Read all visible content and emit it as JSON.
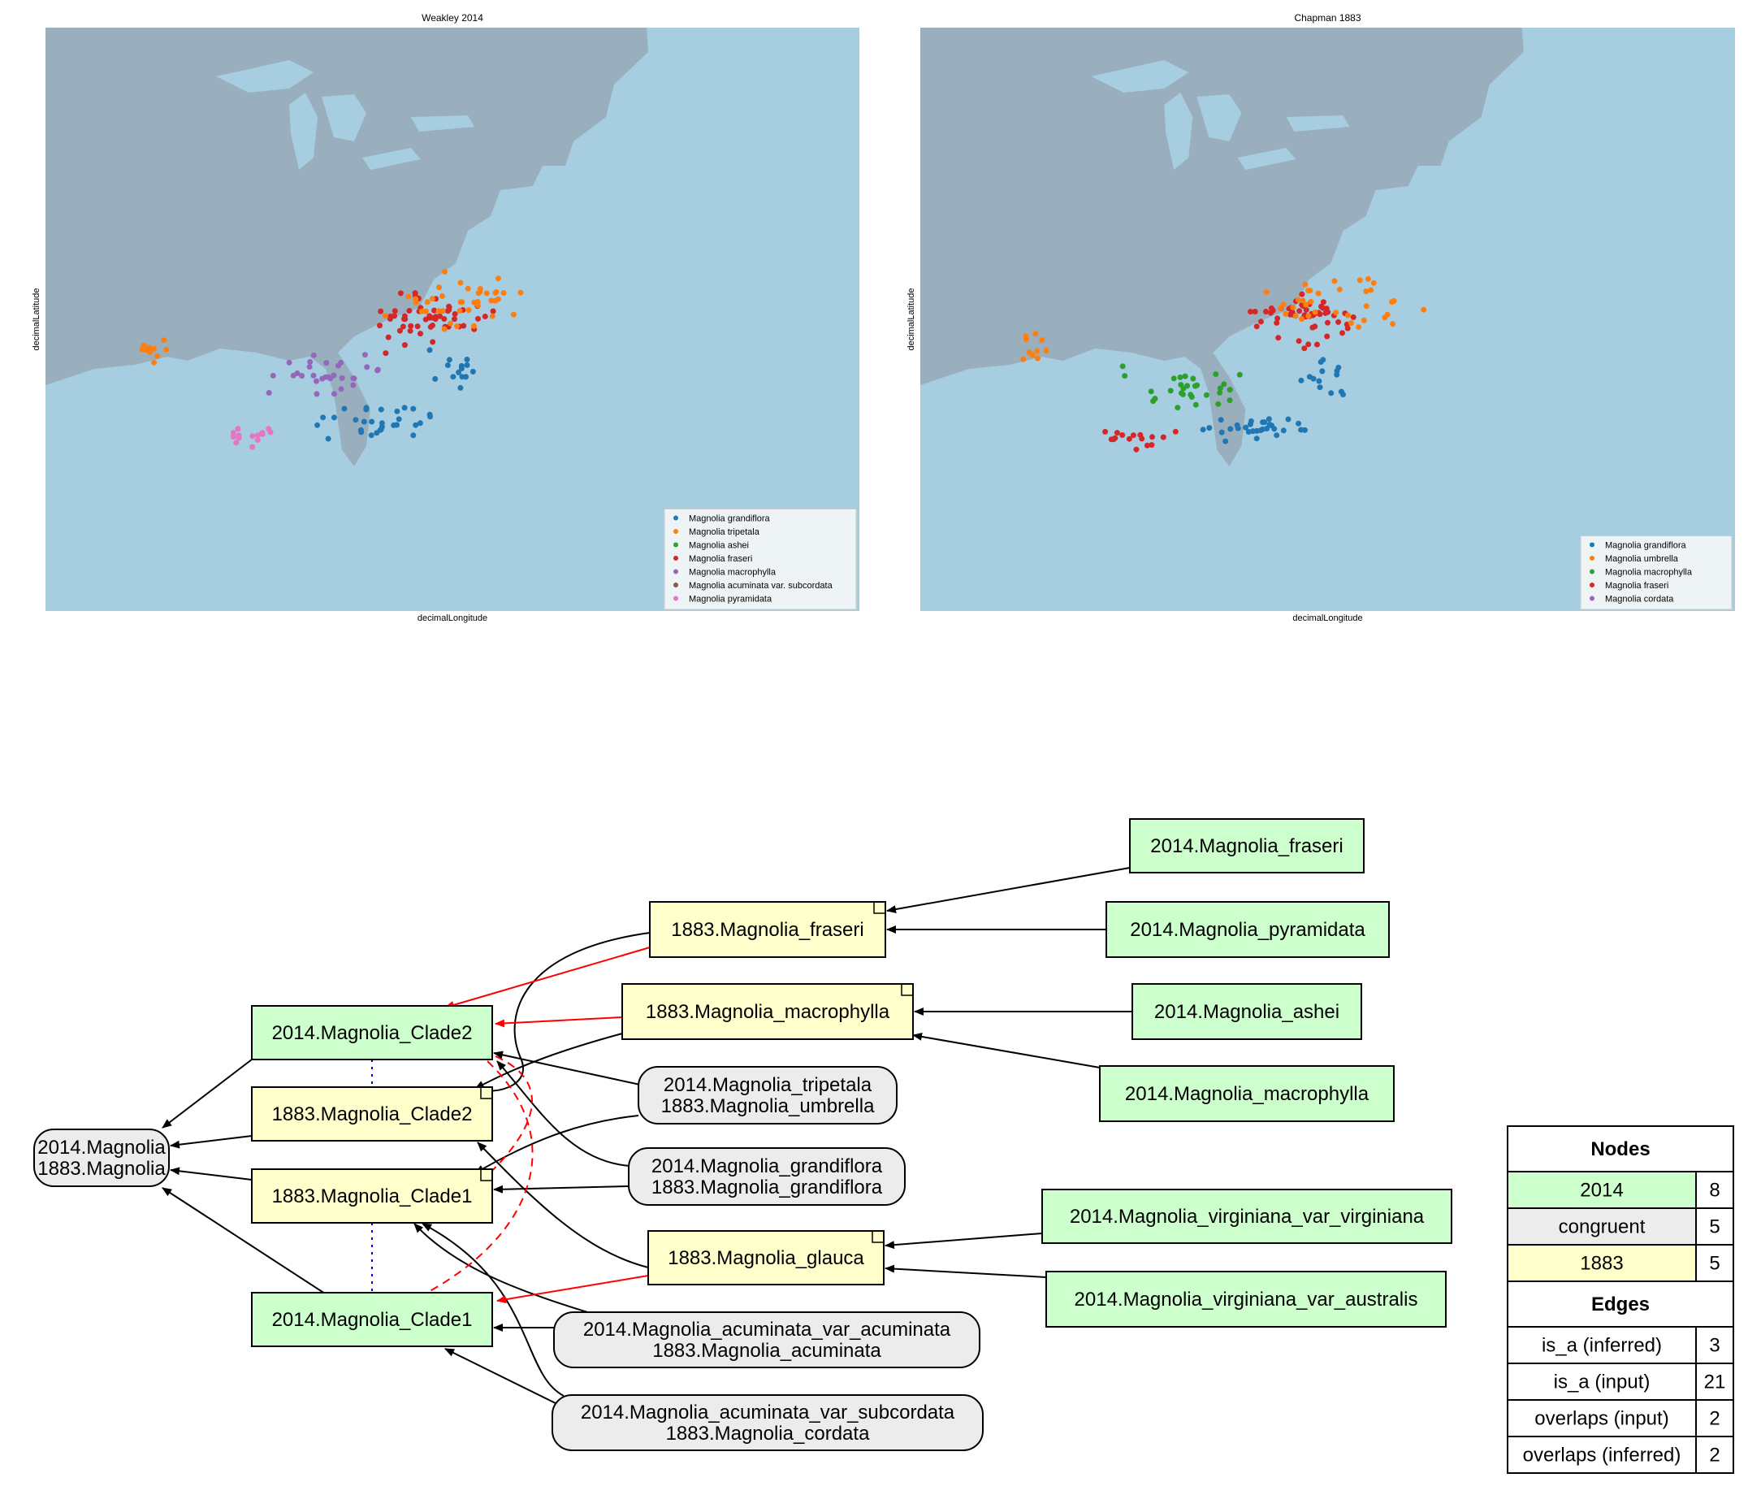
{
  "maps": [
    {
      "title": "Weakley 2014",
      "xlabel": "decimalLongitude",
      "ylabel": "decimalLatitude",
      "legend": [
        {
          "name": "Magnolia grandiflora",
          "color": "#1f77b4"
        },
        {
          "name": "Magnolia tripetala",
          "color": "#ff7f0e"
        },
        {
          "name": "Magnolia ashei",
          "color": "#2ca02c"
        },
        {
          "name": "Magnolia fraseri",
          "color": "#d62728"
        },
        {
          "name": "Magnolia macrophylla",
          "color": "#9467bd"
        },
        {
          "name": "Magnolia acuminata var. subcordata",
          "color": "#8c564b"
        },
        {
          "name": "Magnolia pyramidata",
          "color": "#e377c2"
        }
      ]
    },
    {
      "title": "Chapman 1883",
      "xlabel": "decimalLongitude",
      "ylabel": "decimalLatitude",
      "legend": [
        {
          "name": "Magnolia grandiflora",
          "color": "#1f77b4"
        },
        {
          "name": "Magnolia umbrella",
          "color": "#ff7f0e"
        },
        {
          "name": "Magnolia macrophylla",
          "color": "#2ca02c"
        },
        {
          "name": "Magnolia fraseri",
          "color": "#d62728"
        },
        {
          "name": "Magnolia cordata",
          "color": "#9467bd"
        }
      ]
    }
  ],
  "colors": {
    "land": "#99afbe",
    "water": "#a6cde0",
    "node_2014": "#ccffcc",
    "node_congruent": "#ececec",
    "node_1883": "#ffffcc",
    "edge_inferred": "#ff0000",
    "edge_input": "#000000",
    "overlaps_input": "#0000ff",
    "overlaps_inferred": "#ff0000"
  },
  "graph": {
    "nodes": {
      "congruent_root": [
        "2014.Magnolia",
        "1883.Magnolia"
      ],
      "clade2_2014": "2014.Magnolia_Clade2",
      "clade2_1883": "1883.Magnolia_Clade2",
      "clade1_1883": "1883.Magnolia_Clade1",
      "clade1_2014": "2014.Magnolia_Clade1",
      "fraseri_1883": "1883.Magnolia_fraseri",
      "macrophylla_1883": "1883.Magnolia_macrophylla",
      "glauca_1883": "1883.Magnolia_glauca",
      "tripetala_congruent": [
        "2014.Magnolia_tripetala",
        "1883.Magnolia_umbrella"
      ],
      "grandiflora_congruent": [
        "2014.Magnolia_grandiflora",
        "1883.Magnolia_grandiflora"
      ],
      "acuminata_congruent": [
        "2014.Magnolia_acuminata_var_acuminata",
        "1883.Magnolia_acuminata"
      ],
      "subcordata_congruent": [
        "2014.Magnolia_acuminata_var_subcordata",
        "1883.Magnolia_cordata"
      ],
      "fraseri_2014": "2014.Magnolia_fraseri",
      "pyramidata_2014": "2014.Magnolia_pyramidata",
      "ashei_2014": "2014.Magnolia_ashei",
      "macrophylla_2014": "2014.Magnolia_macrophylla",
      "virginiana_2014": "2014.Magnolia_virginiana_var_virginiana",
      "australis_2014": "2014.Magnolia_virginiana_var_australis"
    }
  },
  "table": {
    "nodes_header": "Nodes",
    "edges_header": "Edges",
    "node_rows": [
      {
        "label": "2014",
        "count": "8"
      },
      {
        "label": "congruent",
        "count": "5"
      },
      {
        "label": "1883",
        "count": "5"
      }
    ],
    "edge_rows": [
      {
        "label": "is_a (inferred)",
        "count": "3",
        "color": "#ff0000"
      },
      {
        "label": "is_a (input)",
        "count": "21",
        "color": "#000000"
      },
      {
        "label": "overlaps (input)",
        "count": "2",
        "color": "#0000ff"
      },
      {
        "label": "overlaps (inferred)",
        "count": "2",
        "color": "#ff0000"
      }
    ]
  }
}
